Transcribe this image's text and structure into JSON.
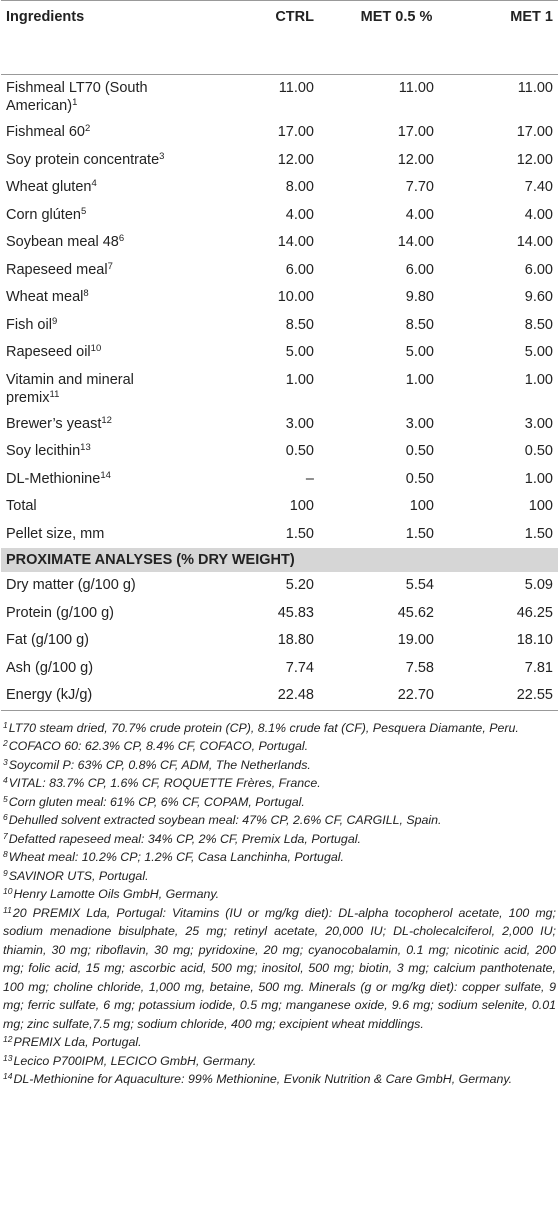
{
  "table": {
    "header": [
      "Ingredients",
      "CTRL",
      "MET 0.5 %",
      "MET 1"
    ],
    "rows": [
      {
        "name": "Fishmeal LT70 (South American)",
        "sup": "1",
        "values": [
          "11.00",
          "11.00",
          "11.00"
        ]
      },
      {
        "name": "Fishmeal 60",
        "sup": "2",
        "values": [
          "17.00",
          "17.00",
          "17.00"
        ]
      },
      {
        "name": "Soy protein concentrate",
        "sup": "3",
        "values": [
          "12.00",
          "12.00",
          "12.00"
        ]
      },
      {
        "name": "Wheat gluten",
        "sup": "4",
        "values": [
          "8.00",
          "7.70",
          "7.40"
        ]
      },
      {
        "name": "Corn glúten",
        "sup": "5",
        "values": [
          "4.00",
          "4.00",
          "4.00"
        ]
      },
      {
        "name": "Soybean meal 48",
        "sup": "6",
        "values": [
          "14.00",
          "14.00",
          "14.00"
        ]
      },
      {
        "name": "Rapeseed meal",
        "sup": "7",
        "values": [
          "6.00",
          "6.00",
          "6.00"
        ]
      },
      {
        "name": "Wheat meal",
        "sup": "8",
        "values": [
          "10.00",
          "9.80",
          "9.60"
        ]
      },
      {
        "name": "Fish oil",
        "sup": "9",
        "values": [
          "8.50",
          "8.50",
          "8.50"
        ]
      },
      {
        "name": "Rapeseed oil",
        "sup": "10",
        "values": [
          "5.00",
          "5.00",
          "5.00"
        ]
      },
      {
        "name": "Vitamin and mineral premix",
        "sup": "11",
        "values": [
          "1.00",
          "1.00",
          "1.00"
        ]
      },
      {
        "name": "Brewer’s yeast",
        "sup": "12",
        "values": [
          "3.00",
          "3.00",
          "3.00"
        ]
      },
      {
        "name": "Soy lecithin",
        "sup": "13",
        "values": [
          "0.50",
          "0.50",
          "0.50"
        ]
      },
      {
        "name": "DL-Methionine",
        "sup": "14",
        "values": [
          "–",
          "0.50",
          "1.00"
        ]
      },
      {
        "name": "Total",
        "values": [
          "100",
          "100",
          "100"
        ]
      },
      {
        "name": "Pellet size, mm",
        "values": [
          "1.50",
          "1.50",
          "1.50"
        ]
      }
    ],
    "section": "PROXIMATE ANALYSES (% DRY WEIGHT)",
    "analyses": [
      {
        "name": "Dry matter (g/100 g)",
        "values": [
          "5.20",
          "5.54",
          "5.09"
        ]
      },
      {
        "name": "Protein (g/100 g)",
        "values": [
          "45.83",
          "45.62",
          "46.25"
        ]
      },
      {
        "name": "Fat (g/100 g)",
        "values": [
          "18.80",
          "19.00",
          "18.10"
        ]
      },
      {
        "name": "Ash (g/100 g)",
        "values": [
          "7.74",
          "7.58",
          "7.81"
        ]
      },
      {
        "name": "Energy (kJ/g)",
        "values": [
          "22.48",
          "22.70",
          "22.55"
        ]
      }
    ]
  },
  "footnotes": [
    {
      "sup": "1",
      "text": "LT70 steam dried, 70.7% crude protein (CP), 8.1% crude fat (CF), Pesquera Diamante, Peru."
    },
    {
      "sup": "2",
      "text": "COFACO 60: 62.3% CP, 8.4% CF, COFACO, Portugal."
    },
    {
      "sup": "3",
      "text": "Soycomil P: 63% CP, 0.8% CF, ADM, The Netherlands."
    },
    {
      "sup": "4",
      "text": "VITAL: 83.7% CP, 1.6% CF, ROQUETTE Frères, France."
    },
    {
      "sup": "5",
      "text": "Corn gluten meal: 61% CP, 6% CF, COPAM, Portugal."
    },
    {
      "sup": "6",
      "text": "Dehulled solvent extracted soybean meal: 47% CP, 2.6% CF, CARGILL, Spain."
    },
    {
      "sup": "7",
      "text": "Defatted rapeseed meal: 34% CP, 2% CF, Premix Lda, Portugal."
    },
    {
      "sup": "8",
      "text": "Wheat meal: 10.2% CP; 1.2% CF, Casa Lanchinha, Portugal."
    },
    {
      "sup": "9",
      "text": "SAVINOR UTS, Portugal."
    },
    {
      "sup": "10",
      "text": "Henry Lamotte Oils GmbH, Germany."
    },
    {
      "sup": "11",
      "text": "20 PREMIX Lda, Portugal: Vitamins (IU or mg/kg diet): DL-alpha tocopherol acetate, 100 mg; sodium menadione bisulphate, 25 mg; retinyl acetate, 20,000 IU; DL-cholecalciferol, 2,000 IU; thiamin, 30 mg; riboflavin, 30 mg; pyridoxine, 20 mg; cyanocobalamin, 0.1 mg; nicotinic acid, 200 mg; folic acid, 15 mg; ascorbic acid, 500 mg; inositol, 500 mg; biotin, 3 mg; calcium panthotenate, 100 mg; choline chloride, 1,000 mg, betaine, 500 mg. Minerals (g or mg/kg diet): copper sulfate, 9 mg; ferric sulfate, 6 mg; potassium iodide, 0.5 mg; manganese oxide, 9.6 mg; sodium selenite, 0.01 mg; zinc sulfate,7.5 mg; sodium chloride, 400 mg; excipient wheat middlings."
    },
    {
      "sup": "12",
      "text": "PREMIX Lda, Portugal."
    },
    {
      "sup": "13",
      "text": "Lecico P700IPM, LECICO GmbH, Germany."
    },
    {
      "sup": "14",
      "text": "DL-Methionine for Aquaculture: 99% Methionine, Evonik Nutrition & Care GmbH, Germany."
    }
  ]
}
